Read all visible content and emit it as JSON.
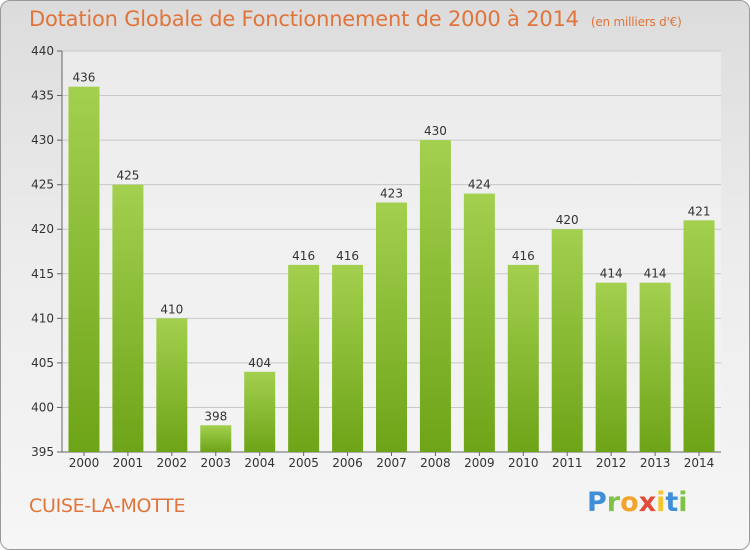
{
  "title": "Dotation Globale de Fonctionnement de 2000 à 2014",
  "unit_note": "(en milliers d'€)",
  "commune": "CUISE-LA-MOTTE",
  "logo": {
    "letters": [
      "P",
      "r",
      "o",
      "x",
      "i",
      "t",
      "i"
    ]
  },
  "colors": {
    "title": "#e0743a",
    "bar_top": "#a3d04f",
    "bar_bottom": "#6ea418",
    "grid": "#c8c8c8"
  },
  "chart_data": {
    "type": "bar",
    "title": "Dotation Globale de Fonctionnement de 2000 à 2014",
    "subtitle": "(en milliers d'€)",
    "categories": [
      "2000",
      "2001",
      "2002",
      "2003",
      "2004",
      "2005",
      "2006",
      "2007",
      "2008",
      "2009",
      "2010",
      "2011",
      "2012",
      "2013",
      "2014"
    ],
    "values": [
      436,
      425,
      410,
      398,
      404,
      416,
      416,
      423,
      430,
      424,
      416,
      420,
      414,
      414,
      421
    ],
    "xlabel": "",
    "ylabel": "",
    "ylim": [
      395,
      440
    ],
    "yticks": [
      395,
      400,
      405,
      410,
      415,
      420,
      425,
      430,
      435,
      440
    ],
    "grid": true
  }
}
